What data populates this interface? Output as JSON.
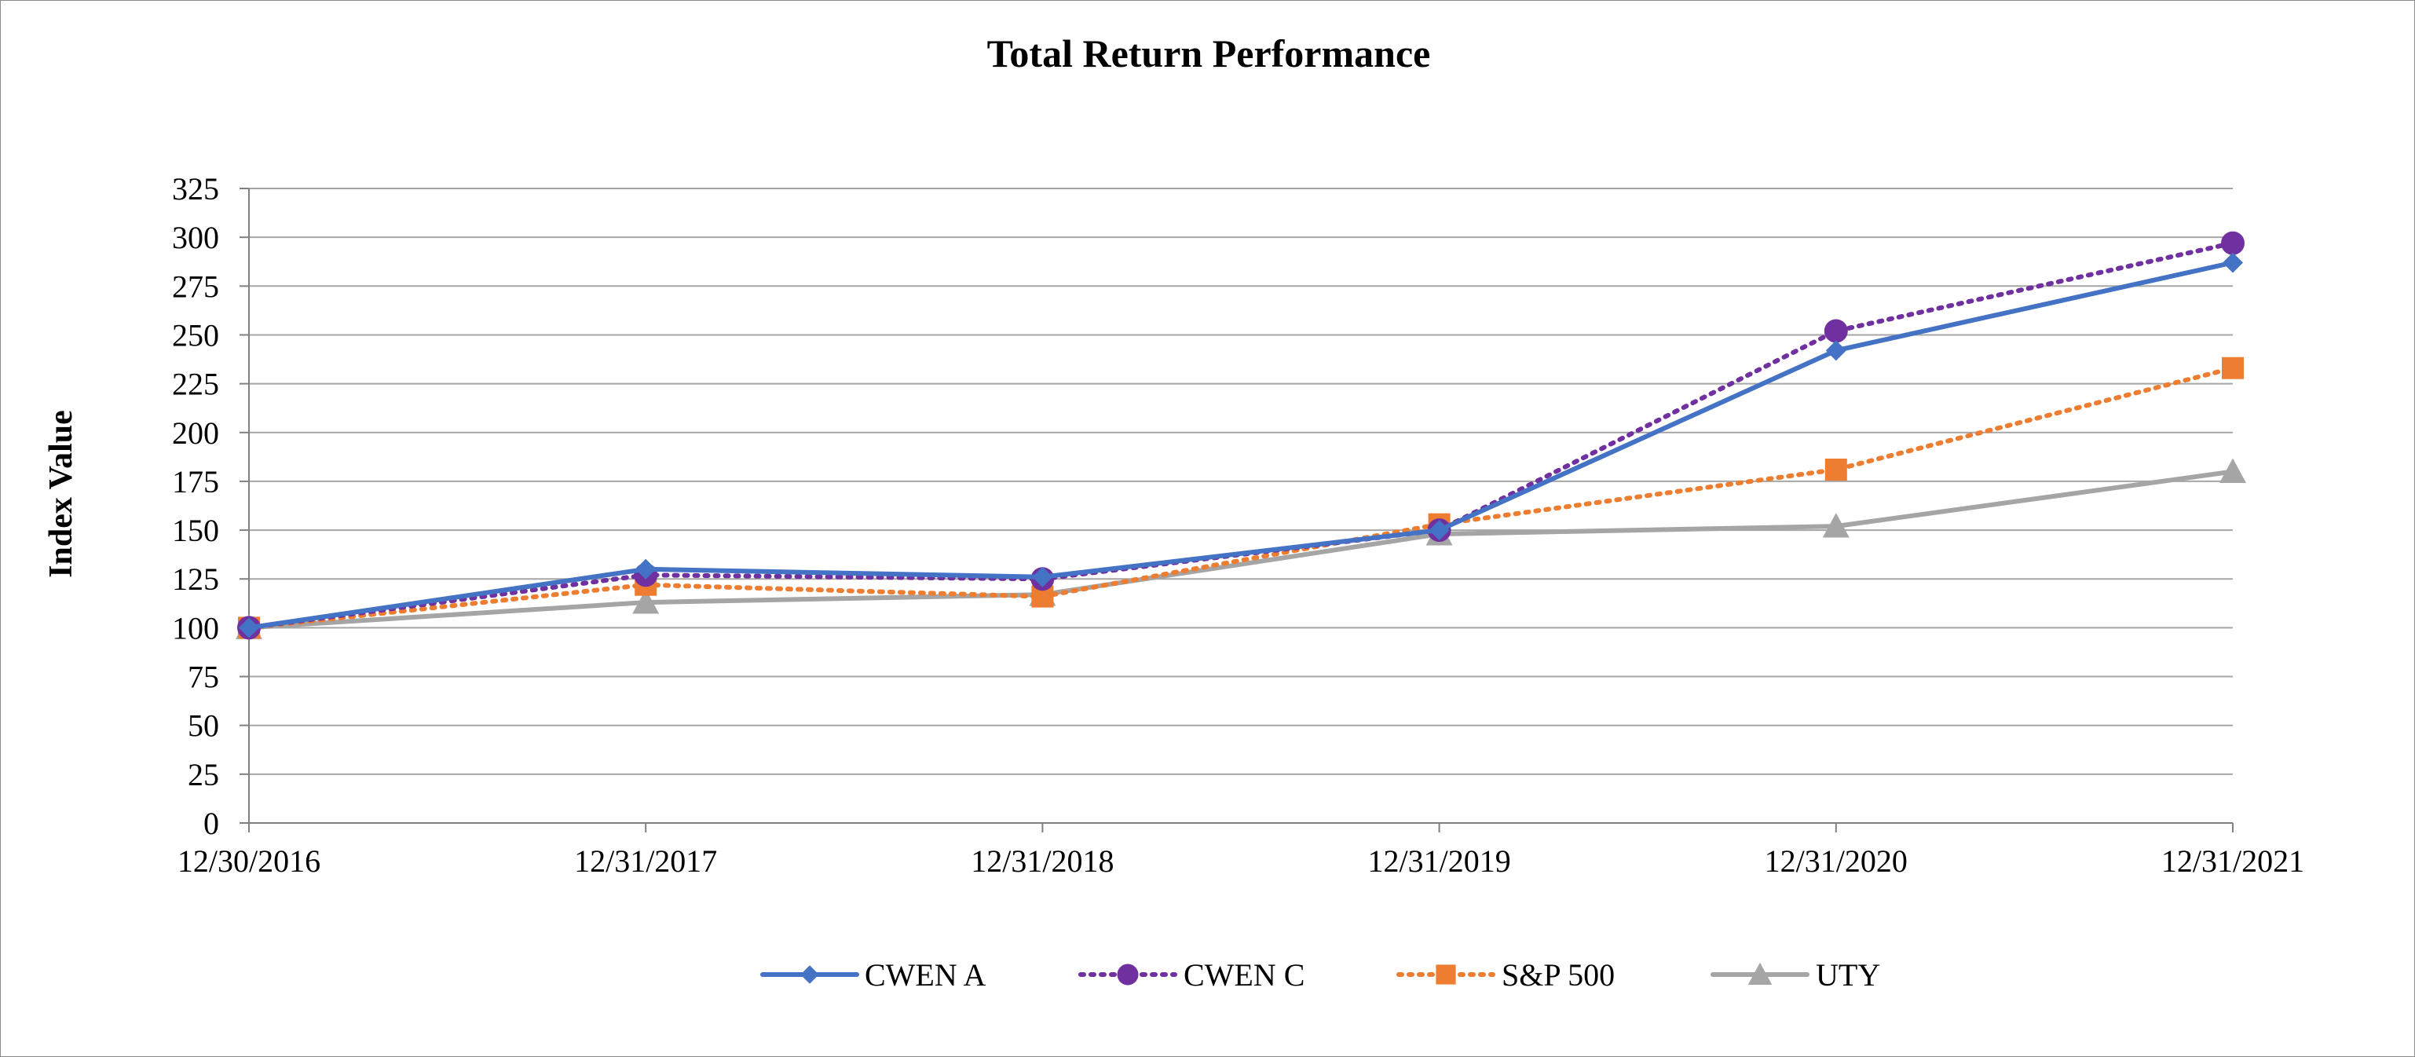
{
  "chart_data": {
    "type": "line",
    "title": "Total Return Performance",
    "xlabel": "",
    "ylabel": "Index Value",
    "categories": [
      "12/30/2016",
      "12/31/2017",
      "12/31/2018",
      "12/31/2019",
      "12/31/2020",
      "12/31/2021"
    ],
    "ylim": [
      0,
      325
    ],
    "yticks": [
      0,
      25,
      50,
      75,
      100,
      125,
      150,
      175,
      200,
      225,
      250,
      275,
      300,
      325
    ],
    "grid": true,
    "legend_position": "bottom",
    "series": [
      {
        "name": "CWEN A",
        "values": [
          100,
          130,
          126,
          150,
          242,
          287
        ],
        "color": "#4472c4",
        "line_style": "solid",
        "marker": "diamond"
      },
      {
        "name": "CWEN C",
        "values": [
          100,
          127,
          125,
          150,
          252,
          297
        ],
        "color": "#7030a0",
        "line_style": "dotted",
        "marker": "circle"
      },
      {
        "name": "S&P 500",
        "values": [
          100,
          122,
          116,
          153,
          181,
          233
        ],
        "color": "#ed7d31",
        "line_style": "dotted",
        "marker": "square"
      },
      {
        "name": "UTY",
        "values": [
          100,
          113,
          117,
          148,
          152,
          180
        ],
        "color": "#a5a5a5",
        "line_style": "solid",
        "marker": "triangle"
      }
    ]
  }
}
